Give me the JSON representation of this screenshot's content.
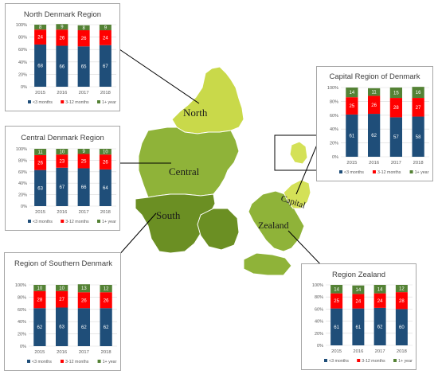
{
  "colors": {
    "lt3": "#1f4e79",
    "m3to12": "#ff0000",
    "gt1y": "#548235",
    "map_dark": "#6b8f23",
    "map_mid": "#8fb339",
    "map_light": "#c9d94a",
    "map_pale": "#d4e157"
  },
  "map": {
    "labels": {
      "north": "North",
      "central": "Central",
      "south": "South",
      "zealand": "Zealand",
      "capital": "Capital"
    }
  },
  "chart_data": [
    {
      "type": "bar",
      "stacked": true,
      "title": "North Denmark Region",
      "categories": [
        "2015",
        "2016",
        "2017",
        "2018"
      ],
      "ylim": [
        0,
        100
      ],
      "yticks": [
        "0%",
        "20%",
        "40%",
        "60%",
        "80%",
        "100%"
      ],
      "series": [
        {
          "name": "<3 months",
          "color": "#1f4e79",
          "values": [
            68,
            66,
            65,
            67
          ]
        },
        {
          "name": "3-12 months",
          "color": "#ff0000",
          "values": [
            24,
            26,
            26,
            24
          ]
        },
        {
          "name": "1+ year",
          "color": "#548235",
          "values": [
            8,
            9,
            8,
            9
          ]
        }
      ]
    },
    {
      "type": "bar",
      "stacked": true,
      "title": "Capital Region of Denmark",
      "categories": [
        "2015",
        "2016",
        "2017",
        "2018"
      ],
      "ylim": [
        0,
        100
      ],
      "yticks": [
        "0%",
        "20%",
        "40%",
        "60%",
        "80%",
        "100%"
      ],
      "series": [
        {
          "name": "<3 months",
          "color": "#1f4e79",
          "values": [
            61,
            62,
            57,
            58
          ]
        },
        {
          "name": "3-12 months",
          "color": "#ff0000",
          "values": [
            25,
            26,
            28,
            27
          ]
        },
        {
          "name": "1+ year",
          "color": "#548235",
          "values": [
            14,
            11,
            15,
            16
          ]
        }
      ]
    },
    {
      "type": "bar",
      "stacked": true,
      "title": "Central Denmark Region",
      "categories": [
        "2015",
        "2016",
        "2017",
        "2018"
      ],
      "ylim": [
        0,
        100
      ],
      "yticks": [
        "0%",
        "20%",
        "40%",
        "60%",
        "80%",
        "100%"
      ],
      "series": [
        {
          "name": "<3 months",
          "color": "#1f4e79",
          "values": [
            63,
            67,
            66,
            64
          ]
        },
        {
          "name": "3-12 months",
          "color": "#ff0000",
          "values": [
            26,
            23,
            25,
            26
          ]
        },
        {
          "name": "1+ year",
          "color": "#548235",
          "values": [
            11,
            10,
            9,
            10
          ]
        }
      ]
    },
    {
      "type": "bar",
      "stacked": true,
      "title": "Region of Southern Denmark",
      "categories": [
        "2015",
        "2016",
        "2017",
        "2018"
      ],
      "ylim": [
        0,
        100
      ],
      "yticks": [
        "0%",
        "20%",
        "40%",
        "60%",
        "80%",
        "100%"
      ],
      "series": [
        {
          "name": "<3 months",
          "color": "#1f4e79",
          "values": [
            62,
            63,
            62,
            62
          ]
        },
        {
          "name": "3-12 months",
          "color": "#ff0000",
          "values": [
            28,
            27,
            26,
            26
          ]
        },
        {
          "name": "1+ year",
          "color": "#548235",
          "values": [
            10,
            10,
            13,
            12
          ]
        }
      ]
    },
    {
      "type": "bar",
      "stacked": true,
      "title": "Region Zealand",
      "categories": [
        "2015",
        "2016",
        "2017",
        "2018"
      ],
      "ylim": [
        0,
        100
      ],
      "yticks": [
        "0%",
        "20%",
        "40%",
        "60%",
        "80%",
        "100%"
      ],
      "series": [
        {
          "name": "<3 months",
          "color": "#1f4e79",
          "values": [
            61,
            61,
            62,
            60
          ]
        },
        {
          "name": "3-12 months",
          "color": "#ff0000",
          "values": [
            25,
            24,
            24,
            28
          ]
        },
        {
          "name": "1+ year",
          "color": "#548235",
          "values": [
            14,
            14,
            14,
            12
          ]
        }
      ]
    }
  ]
}
